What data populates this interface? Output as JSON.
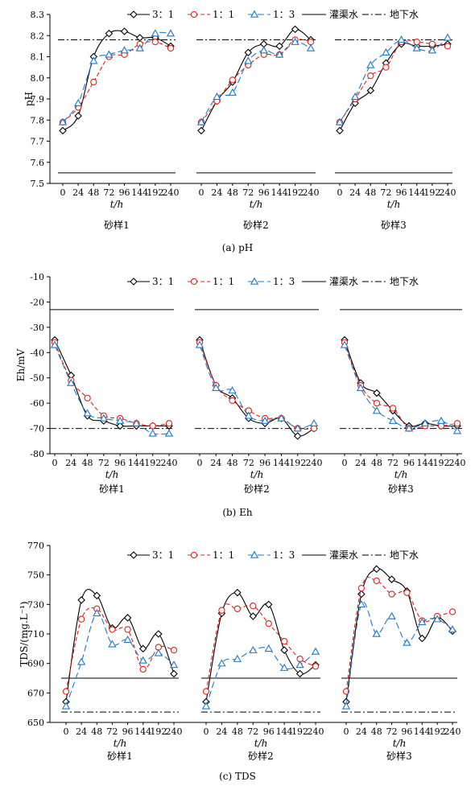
{
  "chart_data": [
    {
      "type": "line",
      "caption": "(a) pH",
      "ylabel": "pH",
      "xlabel": "t/h",
      "ylim": [
        7.5,
        8.3
      ],
      "yticks": [
        "7.5",
        "7.6",
        "7.7",
        "7.8",
        "7.9",
        "8.0",
        "8.1",
        "8.2",
        "8.3"
      ],
      "x_ticks": [
        "0",
        "24",
        "48",
        "72",
        "96",
        "144",
        "192",
        "240"
      ],
      "legend": [
        "3：1",
        "1：1",
        "1：3",
        "灌渠水",
        "地下水"
      ],
      "reference_lines": {
        "灌渠水": 7.55,
        "地下水": 8.18
      },
      "panels": [
        {
          "label": "砂样1",
          "series": [
            {
              "name": "3：1",
              "values": [
                7.75,
                7.82,
                8.1,
                8.21,
                8.22,
                8.19,
                8.19,
                8.15
              ]
            },
            {
              "name": "1：1",
              "values": [
                7.79,
                7.86,
                7.98,
                8.1,
                8.11,
                8.16,
                8.17,
                8.14
              ]
            },
            {
              "name": "1：3",
              "values": [
                7.79,
                7.88,
                8.08,
                8.11,
                8.13,
                8.14,
                8.21,
                8.21
              ]
            }
          ]
        },
        {
          "label": "砂样2",
          "series": [
            {
              "name": "3：1",
              "values": [
                7.75,
                7.89,
                7.98,
                8.12,
                8.16,
                8.15,
                8.23,
                8.18
              ]
            },
            {
              "name": "1：1",
              "values": [
                7.79,
                7.89,
                7.99,
                8.06,
                8.11,
                8.11,
                8.18,
                8.17
              ]
            },
            {
              "name": "1：3",
              "values": [
                7.79,
                7.91,
                7.93,
                8.08,
                8.13,
                8.11,
                8.17,
                8.14
              ]
            }
          ]
        },
        {
          "label": "砂样3",
          "series": [
            {
              "name": "3：1",
              "values": [
                7.75,
                7.88,
                7.94,
                8.07,
                8.16,
                8.15,
                8.15,
                8.16
              ]
            },
            {
              "name": "1：1",
              "values": [
                7.79,
                7.9,
                8.01,
                8.05,
                8.17,
                8.17,
                8.16,
                8.15
              ]
            },
            {
              "name": "1：3",
              "values": [
                7.79,
                7.91,
                8.06,
                8.12,
                8.18,
                8.14,
                8.13,
                8.19
              ]
            }
          ]
        }
      ]
    },
    {
      "type": "line",
      "caption": "(b) Eh",
      "ylabel": "Eh/mV",
      "xlabel": "t/h",
      "ylim": [
        -80,
        -10
      ],
      "yticks": [
        "-80",
        "-70",
        "-60",
        "-50",
        "-40",
        "-30",
        "-20",
        "-10"
      ],
      "x_ticks": [
        "0",
        "24",
        "48",
        "72",
        "96",
        "144",
        "192",
        "240"
      ],
      "legend": [
        "3：1",
        "1：1",
        "1：3",
        "灌渠水",
        "地下水"
      ],
      "reference_lines": {
        "灌渠水": -23,
        "地下水": -70
      },
      "panels": [
        {
          "label": "砂样1",
          "series": [
            {
              "name": "3：1",
              "values": [
                -35,
                -49,
                -65,
                -67,
                -69,
                -69,
                -69,
                -69
              ]
            },
            {
              "name": "1：1",
              "values": [
                -36,
                -51,
                -58,
                -65,
                -66,
                -68,
                -69,
                -68
              ]
            },
            {
              "name": "1：3",
              "values": [
                -37,
                -52,
                -64,
                -66,
                -67,
                -68,
                -72,
                -72
              ]
            }
          ]
        },
        {
          "label": "砂样2",
          "series": [
            {
              "name": "3：1",
              "values": [
                -35,
                -53,
                -58,
                -66,
                -68,
                -66,
                -73,
                -70
              ]
            },
            {
              "name": "1：1",
              "values": [
                -36,
                -53,
                -59,
                -63,
                -66,
                -66,
                -70,
                -70
              ]
            },
            {
              "name": "1：3",
              "values": [
                -37,
                -54,
                -55,
                -65,
                -67,
                -66,
                -70,
                -68
              ]
            }
          ]
        },
        {
          "label": "砂样3",
          "series": [
            {
              "name": "3：1",
              "values": [
                -35,
                -52,
                -56,
                -63,
                -69,
                -68,
                -69,
                -69
              ]
            },
            {
              "name": "1：1",
              "values": [
                -36,
                -53,
                -60,
                -62,
                -70,
                -69,
                -69,
                -68
              ]
            },
            {
              "name": "1：3",
              "values": [
                -37,
                -54,
                -63,
                -67,
                -70,
                -68,
                -67,
                -71
              ]
            }
          ]
        }
      ]
    },
    {
      "type": "line",
      "caption": "(c) TDS",
      "ylabel": "TDS/(mg.L⁻¹)",
      "xlabel": "t/h",
      "ylim": [
        650,
        770
      ],
      "yticks": [
        "650",
        "670",
        "690",
        "710",
        "730",
        "750",
        "770"
      ],
      "x_ticks": [
        "0",
        "24",
        "48",
        "72",
        "96",
        "144",
        "192",
        "240"
      ],
      "legend": [
        "3：1",
        "1：1",
        "1：3",
        "灌渠水",
        "地下水"
      ],
      "reference_lines": {
        "灌渠水": 680,
        "地下水": 657
      },
      "panels": [
        {
          "label": "砂样1",
          "series": [
            {
              "name": "3：1",
              "values": [
                664,
                733,
                736,
                714,
                721,
                700,
                710,
                683
              ]
            },
            {
              "name": "1：1",
              "values": [
                671,
                720,
                727,
                713,
                713,
                686,
                701,
                699
              ]
            },
            {
              "name": "1：3",
              "values": [
                661,
                691,
                724,
                703,
                706,
                692,
                697,
                689
              ]
            }
          ]
        },
        {
          "label": "砂样2",
          "series": [
            {
              "name": "3：1",
              "values": [
                664,
                724,
                738,
                722,
                730,
                699,
                683,
                689
              ]
            },
            {
              "name": "1：1",
              "values": [
                671,
                726,
                727,
                729,
                717,
                705,
                693,
                688
              ]
            },
            {
              "name": "1：3",
              "values": [
                661,
                690,
                693,
                699,
                700,
                687,
                689,
                698
              ]
            }
          ]
        },
        {
          "label": "砂样3",
          "series": [
            {
              "name": "3：1",
              "values": [
                664,
                737,
                754,
                747,
                739,
                707,
                721,
                712
              ]
            },
            {
              "name": "1：1",
              "values": [
                671,
                741,
                746,
                737,
                738,
                719,
                722,
                725
              ]
            },
            {
              "name": "1：3",
              "values": [
                661,
                730,
                710,
                722,
                704,
                718,
                720,
                713
              ]
            }
          ]
        }
      ]
    }
  ]
}
